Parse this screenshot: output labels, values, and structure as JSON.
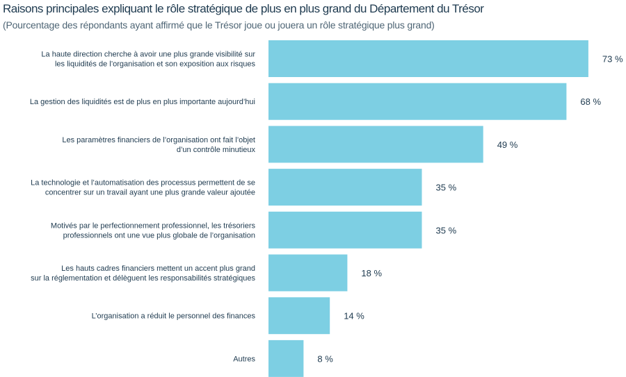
{
  "chart_data": {
    "type": "bar",
    "orientation": "horizontal",
    "title": "Raisons principales expliquant le rôle stratégique de plus en plus grand du Département du Trésor",
    "subtitle": "(Pourcentage des répondants ayant affirmé que le Trésor joue ou jouera un rôle stratégique plus grand)",
    "categories": [
      [
        "La haute direction cherche à avoir une plus grande visibilité sur",
        "les liquidités de l’organisation et son exposition aux risques"
      ],
      [
        "La gestion des liquidités est de plus en plus importante aujourd’hui"
      ],
      [
        "Les paramètres financiers de l’organisation ont fait l’objet",
        "d’un contrôle minutieux"
      ],
      [
        "La technologie et l’automatisation des processus permettent de se",
        "concentrer sur un travail ayant une plus grande valeur ajoutée"
      ],
      [
        "Motivés par le perfectionnement professionnel, les trésoriers",
        "professionnels ont une vue plus globale de l’organisation"
      ],
      [
        "Les hauts cadres financiers mettent un accent plus grand",
        "sur la réglementation et délèguent les responsabilités stratégiques"
      ],
      [
        "L’organisation a réduit le personnel des finances"
      ],
      [
        "Autres"
      ]
    ],
    "values": [
      73,
      68,
      49,
      35,
      35,
      18,
      14,
      8
    ],
    "value_labels": [
      "73 %",
      "68 %",
      "49 %",
      "35 %",
      "35 %",
      "18 %",
      "14 %",
      "8 %"
    ],
    "bar_color": "#7dcfe3",
    "text_color": "#1e3a4f",
    "grid": false,
    "legend": "none"
  }
}
